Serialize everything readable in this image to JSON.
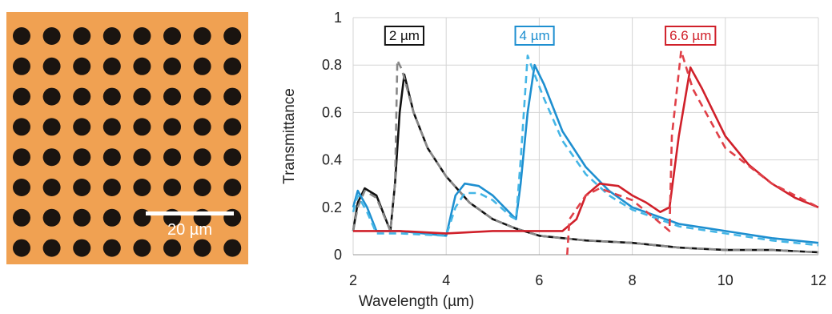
{
  "micrograph": {
    "scale_bar_label": "20 µm"
  },
  "chart_data": {
    "type": "line",
    "x_label": "Wavelength (µm)",
    "y_label": "Transmittance",
    "xlim": [
      2,
      12
    ],
    "xticks": [
      2,
      4,
      6,
      8,
      10,
      12
    ],
    "ylim": [
      0,
      1
    ],
    "yticks": [
      0,
      0.2,
      0.4,
      0.6,
      0.8,
      1
    ],
    "grid": true,
    "series": [
      {
        "name": "2 µm",
        "color": "#111111",
        "line_style": "solid",
        "x": [
          2.0,
          2.1,
          2.25,
          2.5,
          2.8,
          2.9,
          3.0,
          3.1,
          3.3,
          3.6,
          4.0,
          4.5,
          5.0,
          5.5,
          6.0,
          7.0,
          8.0,
          9.0,
          10.0,
          11.0,
          12.0
        ],
        "values": [
          0.1,
          0.22,
          0.28,
          0.25,
          0.1,
          0.3,
          0.6,
          0.76,
          0.6,
          0.45,
          0.33,
          0.22,
          0.15,
          0.11,
          0.08,
          0.06,
          0.05,
          0.03,
          0.02,
          0.02,
          0.01
        ]
      },
      {
        "color": "#888888",
        "line_style": "dashed",
        "x": [
          2.0,
          2.1,
          2.25,
          2.5,
          2.8,
          2.9,
          2.95,
          3.05,
          3.3,
          3.6,
          4.0,
          4.5,
          5.0,
          5.5,
          6.0,
          7.0,
          8.0,
          9.0,
          10.0,
          11.0,
          12.0
        ],
        "values": [
          0.1,
          0.2,
          0.27,
          0.24,
          0.1,
          0.3,
          0.82,
          0.78,
          0.6,
          0.45,
          0.33,
          0.22,
          0.15,
          0.11,
          0.08,
          0.06,
          0.05,
          0.03,
          0.02,
          0.02,
          0.01
        ]
      },
      {
        "name": "4 µm",
        "color": "#1e8fd0",
        "line_style": "solid",
        "x": [
          2.0,
          2.1,
          2.3,
          2.5,
          3.0,
          4.0,
          4.2,
          4.4,
          4.7,
          5.0,
          5.4,
          5.5,
          5.6,
          5.75,
          5.9,
          6.1,
          6.5,
          7.0,
          7.5,
          8.0,
          9.0,
          10.0,
          11.0,
          12.0
        ],
        "values": [
          0.2,
          0.27,
          0.2,
          0.1,
          0.1,
          0.08,
          0.25,
          0.3,
          0.29,
          0.25,
          0.17,
          0.15,
          0.3,
          0.6,
          0.8,
          0.72,
          0.52,
          0.37,
          0.27,
          0.2,
          0.13,
          0.1,
          0.07,
          0.05
        ]
      },
      {
        "color": "#45b6e6",
        "line_style": "dashed",
        "x": [
          2.0,
          2.1,
          2.3,
          2.5,
          3.0,
          4.0,
          4.2,
          4.4,
          4.7,
          5.0,
          5.4,
          5.5,
          5.6,
          5.75,
          5.9,
          6.1,
          6.5,
          7.0,
          7.5,
          8.0,
          9.0,
          10.0,
          11.0,
          12.0
        ],
        "values": [
          0.18,
          0.25,
          0.18,
          0.09,
          0.09,
          0.08,
          0.2,
          0.26,
          0.26,
          0.23,
          0.16,
          0.15,
          0.4,
          0.84,
          0.76,
          0.66,
          0.48,
          0.34,
          0.25,
          0.19,
          0.12,
          0.09,
          0.06,
          0.04
        ]
      },
      {
        "name": "6.6 µm",
        "color": "#d0202a",
        "line_style": "solid",
        "x": [
          2.0,
          3.0,
          4.0,
          5.0,
          5.5,
          6.0,
          6.5,
          6.8,
          7.0,
          7.3,
          7.7,
          8.0,
          8.3,
          8.6,
          8.8,
          9.0,
          9.25,
          9.5,
          10.0,
          10.5,
          11.0,
          11.5,
          12.0
        ],
        "values": [
          0.1,
          0.1,
          0.09,
          0.1,
          0.1,
          0.1,
          0.1,
          0.15,
          0.25,
          0.3,
          0.29,
          0.25,
          0.22,
          0.18,
          0.2,
          0.5,
          0.79,
          0.7,
          0.5,
          0.38,
          0.3,
          0.24,
          0.2
        ]
      },
      {
        "color": "#e04048",
        "line_style": "dashed",
        "x": [
          6.6,
          6.65,
          7.0,
          7.3,
          8.0,
          8.5,
          8.8,
          8.85,
          9.05,
          9.3,
          10.0,
          11.0,
          12.0
        ],
        "values": [
          0,
          0.15,
          0.25,
          0.28,
          0.23,
          0.15,
          0.1,
          0.5,
          0.86,
          0.7,
          0.45,
          0.3,
          0.2
        ]
      }
    ]
  }
}
